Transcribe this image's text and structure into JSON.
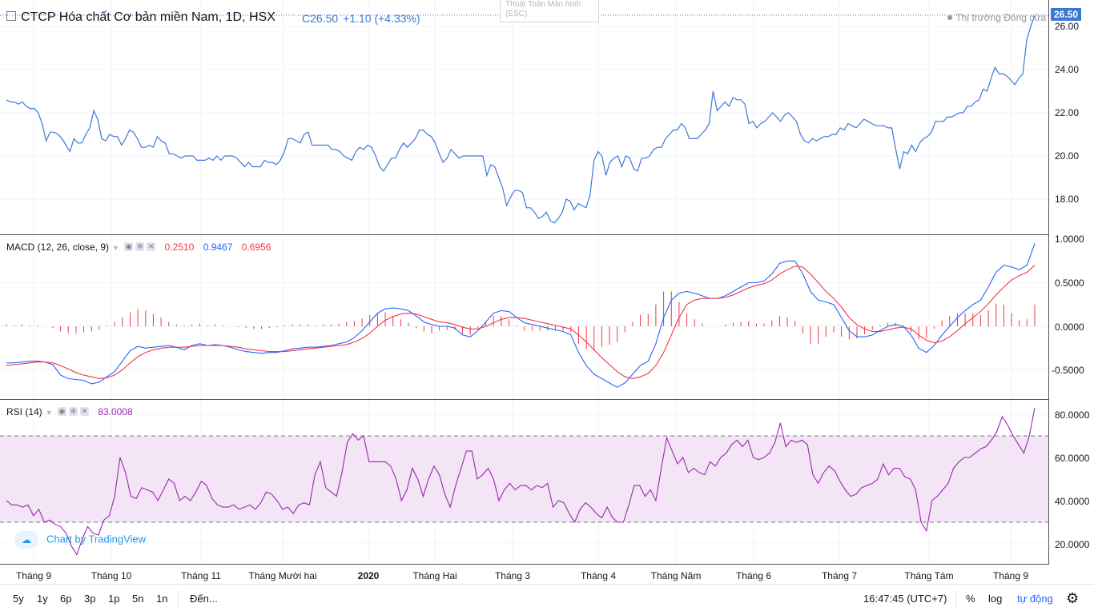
{
  "header": {
    "title": "CTCP Hóa chất Cơ bản miền Nam, 1D, HSX",
    "price": "C26.50",
    "change": "+1.10 (+4.33%)",
    "fullscreen_tip_line1": "Thoát Toàn Màn hình",
    "fullscreen_tip_line2": "(ESC)",
    "market_status": "Thị trường Đóng cửa",
    "last_price_tag": "26.50"
  },
  "macd": {
    "name": "MACD (12, 26, close, 9)",
    "hist_value": "0.2510",
    "macd_value": "0.9467",
    "signal_value": "0.6956"
  },
  "rsi": {
    "name": "RSI (14)",
    "value": "83.0008"
  },
  "colors": {
    "price_line": "#3c78d8",
    "macd_line": "#2962ff",
    "signal_line": "#f23645",
    "hist_bar": "#f23645",
    "rsi_line": "#9c27b0",
    "rsi_band": "#f3e5f5"
  },
  "axes": {
    "price_ticks": [
      "26.00",
      "24.00",
      "22.00",
      "20.00",
      "18.00"
    ],
    "macd_ticks": [
      "1.0000",
      "0.5000",
      "0.0000",
      "-0.5000"
    ],
    "rsi_ticks": [
      "80.0000",
      "60.0000",
      "40.0000",
      "20.0000"
    ],
    "time_labels": [
      {
        "text": "Tháng 9",
        "bold": false
      },
      {
        "text": "Tháng 10",
        "bold": false
      },
      {
        "text": "Tháng 11",
        "bold": false
      },
      {
        "text": "Tháng Mười hai",
        "bold": false
      },
      {
        "text": "2020",
        "bold": true
      },
      {
        "text": "Tháng Hai",
        "bold": false
      },
      {
        "text": "Tháng 3",
        "bold": false
      },
      {
        "text": "Tháng 4",
        "bold": false
      },
      {
        "text": "Tháng Năm",
        "bold": false
      },
      {
        "text": "Tháng 6",
        "bold": false
      },
      {
        "text": "Tháng 7",
        "bold": false
      },
      {
        "text": "Tháng Tám",
        "bold": false
      },
      {
        "text": "Tháng 9",
        "bold": false
      }
    ]
  },
  "watermark": "Chart by TradingView",
  "toolbar": {
    "ranges": [
      "5y",
      "1y",
      "6p",
      "3p",
      "1p",
      "5n",
      "1n"
    ],
    "goto": "Đến...",
    "time": "16:47:45 (UTC+7)",
    "percent": "%",
    "log": "log",
    "auto": "tự động"
  },
  "chart_data": [
    {
      "type": "line",
      "title": "CTCP Hóa chất Cơ bản miền Nam, 1D, HSX",
      "ylim": [
        16.8,
        27.0
      ],
      "series": [
        {
          "values": [
            22.6,
            22.5,
            22.5,
            22.4,
            22.5,
            22.3,
            22.2,
            22.2,
            22.0,
            21.5,
            20.7,
            21.1,
            21.1,
            21.0,
            20.8,
            20.5,
            20.2,
            20.8,
            20.6,
            20.6,
            21.0,
            21.3,
            22.1,
            21.7,
            20.8,
            20.7,
            21.0,
            20.9,
            20.9,
            20.5,
            20.8,
            21.2,
            21.1,
            20.8,
            20.4,
            20.4,
            20.5,
            20.4,
            20.9,
            20.7,
            20.6,
            20.1,
            20.1,
            20.0,
            19.9,
            20.0,
            20.0,
            20.0,
            19.8,
            19.8,
            19.8,
            19.9,
            19.8,
            20.0,
            19.8,
            20.0,
            20.0,
            20.0,
            19.9,
            19.7,
            19.5,
            19.7,
            19.5,
            19.5,
            19.5,
            19.8,
            19.7,
            19.7,
            19.6,
            19.8,
            20.2,
            20.8,
            20.8,
            20.7,
            20.6,
            21.0,
            21.1,
            20.5,
            20.5,
            20.5,
            20.5,
            20.5,
            20.3,
            20.3,
            20.2,
            20.0,
            19.9,
            19.8,
            20.2,
            20.4,
            20.3,
            20.5,
            20.4,
            20.0,
            19.5,
            19.3,
            19.6,
            19.9,
            19.9,
            20.3,
            20.6,
            20.4,
            20.6,
            20.8,
            21.2,
            21.2,
            21.0,
            20.9,
            20.6,
            20.1,
            19.7,
            19.9,
            20.3,
            20.1,
            19.9,
            20.0,
            20.0,
            20.0,
            20.0,
            20.0,
            20.0,
            19.1,
            19.6,
            19.5,
            19.0,
            18.5,
            17.7,
            18.1,
            18.4,
            18.4,
            18.3,
            17.6,
            17.6,
            17.4,
            17.1,
            17.2,
            17.4,
            17.0,
            16.9,
            17.1,
            17.4,
            18.0,
            17.9,
            17.5,
            17.8,
            17.7,
            17.6,
            18.2,
            19.8,
            20.2,
            20.0,
            19.1,
            19.7,
            19.9,
            20.0,
            19.5,
            20.0,
            19.9,
            19.4,
            19.3,
            19.9,
            19.9,
            20.0,
            20.3,
            20.4,
            20.4,
            20.8,
            21.0,
            21.2,
            21.2,
            21.5,
            21.3,
            20.8,
            20.8,
            20.8,
            21.0,
            21.2,
            21.5,
            23.0,
            22.1,
            22.3,
            22.5,
            22.3,
            22.7,
            22.6,
            22.6,
            22.4,
            21.5,
            21.6,
            21.3,
            21.5,
            21.6,
            21.8,
            22.0,
            21.8,
            21.6,
            21.9,
            22.0,
            21.8,
            21.6,
            21.0,
            20.7,
            20.6,
            20.8,
            20.7,
            20.8,
            20.9,
            20.9,
            21.0,
            21.0,
            21.3,
            21.2,
            21.5,
            21.4,
            21.3,
            21.5,
            21.7,
            21.6,
            21.5,
            21.4,
            21.4,
            21.4,
            21.3,
            21.3,
            20.3,
            19.4,
            20.2,
            20.1,
            20.5,
            20.2,
            20.6,
            20.8,
            20.9,
            21.1,
            21.6,
            21.6,
            21.6,
            21.8,
            21.8,
            21.9,
            22.0,
            22.0,
            22.3,
            22.3,
            22.5,
            22.6,
            23.1,
            23.0,
            23.6,
            24.1,
            23.8,
            23.8,
            23.7,
            23.5,
            23.3,
            23.6,
            23.8,
            25.4,
            26.0,
            26.5
          ]
        }
      ],
      "ylabel": ""
    },
    {
      "type": "line",
      "title": "MACD (12, 26, close, 9)",
      "ylim": [
        -0.75,
        1.0
      ],
      "series": [
        {
          "values": [
            -0.42,
            -0.42,
            -0.41,
            -0.4,
            -0.4,
            -0.41,
            -0.44,
            -0.56,
            -0.6,
            -0.61,
            -0.62,
            -0.66,
            -0.64,
            -0.58,
            -0.52,
            -0.4,
            -0.28,
            -0.23,
            -0.25,
            -0.24,
            -0.23,
            -0.22,
            -0.24,
            -0.27,
            -0.22,
            -0.2,
            -0.22,
            -0.21,
            -0.22,
            -0.24,
            -0.27,
            -0.29,
            -0.3,
            -0.31,
            -0.3,
            -0.3,
            -0.28,
            -0.26,
            -0.25,
            -0.24,
            -0.24,
            -0.23,
            -0.22,
            -0.2,
            -0.18,
            -0.13,
            -0.05,
            0.05,
            0.15,
            0.2,
            0.21,
            0.2,
            0.18,
            0.12,
            0.05,
            0.02,
            0.0,
            0.0,
            -0.02,
            -0.1,
            -0.12,
            -0.05,
            0.05,
            0.15,
            0.18,
            0.17,
            0.1,
            0.04,
            0.02,
            0.0,
            -0.02,
            -0.04,
            -0.06,
            -0.1,
            -0.3,
            -0.45,
            -0.55,
            -0.6,
            -0.65,
            -0.7,
            -0.65,
            -0.55,
            -0.45,
            -0.4,
            -0.2,
            0.1,
            0.3,
            0.38,
            0.4,
            0.38,
            0.35,
            0.32,
            0.32,
            0.35,
            0.4,
            0.45,
            0.5,
            0.5,
            0.52,
            0.6,
            0.72,
            0.75,
            0.75,
            0.6,
            0.4,
            0.3,
            0.28,
            0.25,
            0.1,
            -0.05,
            -0.12,
            -0.12,
            -0.1,
            -0.05,
            0.0,
            0.02,
            0.0,
            -0.1,
            -0.25,
            -0.3,
            -0.22,
            -0.1,
            0.0,
            0.1,
            0.18,
            0.25,
            0.3,
            0.45,
            0.62,
            0.7,
            0.68,
            0.65,
            0.7,
            0.95
          ]
        },
        {
          "values": [
            -0.45,
            -0.44,
            -0.43,
            -0.42,
            -0.41,
            -0.41,
            -0.42,
            -0.45,
            -0.49,
            -0.53,
            -0.56,
            -0.58,
            -0.6,
            -0.59,
            -0.56,
            -0.5,
            -0.42,
            -0.35,
            -0.3,
            -0.27,
            -0.25,
            -0.24,
            -0.24,
            -0.24,
            -0.23,
            -0.22,
            -0.22,
            -0.22,
            -0.22,
            -0.23,
            -0.24,
            -0.26,
            -0.27,
            -0.28,
            -0.29,
            -0.29,
            -0.29,
            -0.28,
            -0.27,
            -0.26,
            -0.25,
            -0.24,
            -0.23,
            -0.22,
            -0.21,
            -0.18,
            -0.14,
            -0.08,
            0.0,
            0.07,
            0.11,
            0.14,
            0.15,
            0.14,
            0.11,
            0.08,
            0.05,
            0.04,
            0.02,
            -0.01,
            -0.03,
            -0.03,
            0.0,
            0.04,
            0.08,
            0.1,
            0.1,
            0.09,
            0.07,
            0.05,
            0.03,
            0.01,
            -0.01,
            -0.03,
            -0.1,
            -0.18,
            -0.27,
            -0.36,
            -0.44,
            -0.52,
            -0.58,
            -0.6,
            -0.58,
            -0.54,
            -0.45,
            -0.3,
            -0.1,
            0.1,
            0.25,
            0.3,
            0.32,
            0.32,
            0.32,
            0.33,
            0.36,
            0.4,
            0.44,
            0.47,
            0.49,
            0.53,
            0.6,
            0.65,
            0.69,
            0.68,
            0.6,
            0.5,
            0.4,
            0.32,
            0.22,
            0.1,
            0.02,
            -0.03,
            -0.06,
            -0.06,
            -0.04,
            -0.02,
            -0.01,
            -0.03,
            -0.1,
            -0.16,
            -0.19,
            -0.17,
            -0.12,
            -0.05,
            0.03,
            0.1,
            0.17,
            0.26,
            0.36,
            0.45,
            0.53,
            0.58,
            0.62,
            0.7
          ]
        },
        {
          "values": [
            0.02,
            0.01,
            0.02,
            0.01,
            0.01,
            0.0,
            -0.02,
            -0.06,
            -0.08,
            -0.08,
            -0.07,
            -0.06,
            -0.04,
            0.01,
            0.05,
            0.1,
            0.16,
            0.2,
            0.18,
            0.14,
            0.1,
            0.05,
            0.02,
            0.01,
            0.02,
            0.03,
            0.01,
            0.02,
            0.01,
            0.0,
            -0.01,
            -0.02,
            -0.03,
            -0.03,
            -0.02,
            -0.01,
            0.01,
            0.02,
            0.02,
            0.02,
            0.01,
            0.02,
            0.02,
            0.03,
            0.05,
            0.06,
            0.09,
            0.13,
            0.15,
            0.16,
            0.12,
            0.08,
            0.04,
            -0.02,
            -0.06,
            -0.08,
            -0.05,
            -0.04,
            -0.04,
            -0.09,
            -0.1,
            -0.02,
            0.06,
            0.12,
            0.12,
            0.08,
            0.01,
            -0.05,
            -0.05,
            -0.05,
            -0.05,
            -0.05,
            -0.05,
            -0.07,
            -0.2,
            -0.26,
            -0.28,
            -0.24,
            -0.21,
            -0.18,
            -0.07,
            0.05,
            0.13,
            0.14,
            0.25,
            0.4,
            0.4,
            0.28,
            0.15,
            0.08,
            0.03,
            0.0,
            0.0,
            0.02,
            0.04,
            0.05,
            0.06,
            0.03,
            0.03,
            0.07,
            0.12,
            0.1,
            0.06,
            -0.08,
            -0.2,
            -0.2,
            -0.12,
            -0.07,
            -0.12,
            -0.15,
            -0.14,
            -0.09,
            -0.04,
            0.01,
            0.04,
            0.04,
            0.01,
            -0.07,
            -0.15,
            -0.14,
            -0.03,
            0.07,
            0.12,
            0.15,
            0.15,
            0.15,
            0.13,
            0.19,
            0.26,
            0.25,
            0.15,
            0.07,
            0.08,
            0.25
          ]
        }
      ]
    },
    {
      "type": "line",
      "title": "RSI (14)",
      "ylim": [
        10,
        86
      ],
      "band": [
        30,
        70
      ],
      "series": [
        {
          "values": [
            40,
            38,
            38,
            37,
            38,
            33,
            36,
            30,
            31,
            29,
            28,
            25,
            19,
            15,
            22,
            28,
            25,
            24,
            31,
            33,
            42,
            60,
            53,
            42,
            41,
            46,
            45,
            44,
            40,
            45,
            50,
            48,
            40,
            42,
            40,
            44,
            49,
            47,
            41,
            38,
            37,
            37,
            38,
            36,
            37,
            38,
            36,
            39,
            44,
            43,
            40,
            36,
            37,
            34,
            38,
            39,
            38,
            52,
            58,
            46,
            44,
            42,
            53,
            67,
            71,
            68,
            70,
            58,
            58,
            58,
            58,
            56,
            50,
            40,
            45,
            55,
            50,
            42,
            50,
            56,
            52,
            43,
            37,
            47,
            55,
            63,
            63,
            50,
            52,
            55,
            50,
            40,
            45,
            48,
            45,
            47,
            47,
            45,
            47,
            46,
            48,
            37,
            40,
            39,
            34,
            30,
            36,
            39,
            37,
            34,
            32,
            37,
            32,
            30,
            30,
            38,
            47,
            47,
            42,
            45,
            40,
            55,
            69,
            63,
            57,
            60,
            53,
            55,
            53,
            52,
            58,
            56,
            60,
            62,
            66,
            68,
            65,
            68,
            60,
            59,
            60,
            62,
            67,
            76,
            65,
            68,
            67,
            68,
            66,
            52,
            48,
            53,
            56,
            54,
            49,
            45,
            42,
            43,
            46,
            47,
            48,
            50,
            57,
            52,
            55,
            55,
            51,
            50,
            45,
            30,
            26,
            40,
            42,
            45,
            48,
            55,
            58,
            60,
            60,
            62,
            64,
            65,
            68,
            72,
            79,
            75,
            70,
            66,
            62,
            70,
            83
          ]
        }
      ]
    }
  ]
}
